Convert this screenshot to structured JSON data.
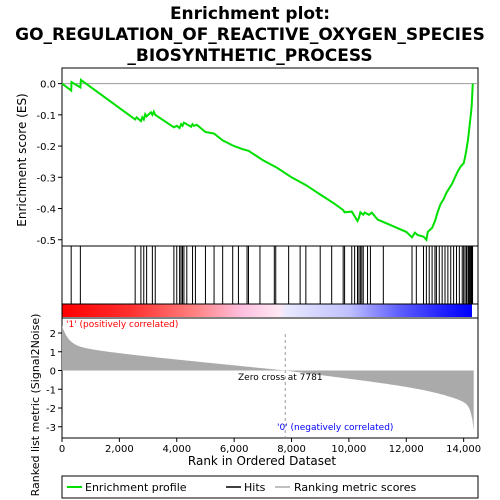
{
  "chart_data": {
    "type": "line",
    "title_line1": "Enrichment plot:",
    "title_line2": "GO_REGULATION_OF_REACTIVE_OXYGEN_SPECIES",
    "title_line3": "_BIOSYNTHETIC_PROCESS",
    "es_ylabel": "Enrichment score (ES)",
    "metric_ylabel": "Ranked list metric (Signal2Noise)",
    "xlabel": "Rank in Ordered Dataset",
    "x_ticks": [
      0,
      2000,
      4000,
      6000,
      8000,
      10000,
      12000,
      14000
    ],
    "x_tick_labels": [
      "0",
      "2,000",
      "4,000",
      "6,000",
      "8,000",
      "10,000",
      "12,000",
      "14,000"
    ],
    "xlim": [
      0,
      14500
    ],
    "es_ylim": [
      -0.52,
      0.05
    ],
    "es_yticks": [
      0.0,
      -0.1,
      -0.2,
      -0.3,
      -0.4,
      -0.5
    ],
    "es_ytick_labels": [
      "0.0",
      "-0.1",
      "-0.2",
      "-0.3",
      "-0.4",
      "-0.5"
    ],
    "metric_ylim": [
      -3.6,
      2.8
    ],
    "metric_yticks": [
      2,
      1,
      0,
      -1,
      -2,
      -3
    ],
    "metric_ytick_labels": [
      "2",
      "1",
      "0",
      "-1",
      "-2",
      "-3"
    ],
    "n_genes": 14350,
    "zero_cross_rank": 7781,
    "zero_cross_label": "Zero cross at 7781",
    "pos_label": "'1' (positively correlated)",
    "neg_label": "'0' (negatively correlated)",
    "enrichment_profile": {
      "x": [
        0,
        320,
        330,
        640,
        660,
        2550,
        2600,
        2750,
        2800,
        2850,
        2900,
        2950,
        3100,
        3150,
        3200,
        3250,
        3900,
        4000,
        4100,
        4150,
        4200,
        4250,
        4350,
        4500,
        4550,
        4600,
        4700,
        5000,
        5300,
        5600,
        6000,
        6300,
        6500,
        7000,
        7500,
        8000,
        8500,
        9000,
        9500,
        9800,
        9850,
        10100,
        10200,
        10300,
        10350,
        10400,
        10500,
        10550,
        10700,
        10800,
        11000,
        11500,
        12000,
        12200,
        12300,
        12400,
        12600,
        12700,
        12750,
        12900,
        13000,
        13100,
        13200,
        13300,
        13400,
        13500,
        13600,
        13700,
        13800,
        13900,
        14000,
        14050,
        14100,
        14150,
        14200,
        14250,
        14280,
        14300,
        14320
      ],
      "y": [
        0.0,
        -0.022,
        0.005,
        -0.012,
        0.012,
        -0.115,
        -0.108,
        -0.12,
        -0.108,
        -0.115,
        -0.098,
        -0.105,
        -0.092,
        -0.1,
        -0.09,
        -0.1,
        -0.14,
        -0.135,
        -0.142,
        -0.13,
        -0.135,
        -0.125,
        -0.13,
        -0.138,
        -0.13,
        -0.135,
        -0.132,
        -0.155,
        -0.16,
        -0.182,
        -0.2,
        -0.21,
        -0.215,
        -0.245,
        -0.27,
        -0.3,
        -0.325,
        -0.355,
        -0.385,
        -0.405,
        -0.412,
        -0.41,
        -0.425,
        -0.44,
        -0.43,
        -0.412,
        -0.42,
        -0.413,
        -0.42,
        -0.413,
        -0.435,
        -0.455,
        -0.475,
        -0.492,
        -0.477,
        -0.485,
        -0.49,
        -0.5,
        -0.475,
        -0.462,
        -0.44,
        -0.41,
        -0.385,
        -0.37,
        -0.35,
        -0.335,
        -0.32,
        -0.3,
        -0.28,
        -0.265,
        -0.255,
        -0.235,
        -0.21,
        -0.18,
        -0.14,
        -0.1,
        -0.07,
        -0.03,
        0.0
      ]
    },
    "hits": [
      320,
      640,
      2550,
      2750,
      2850,
      2950,
      3150,
      3250,
      3900,
      4000,
      4100,
      4150,
      4200,
      4250,
      4350,
      4550,
      4650,
      5000,
      5300,
      5600,
      5950,
      6150,
      6450,
      6500,
      6900,
      7400,
      7450,
      7900,
      8300,
      8500,
      9000,
      9400,
      9800,
      9850,
      10100,
      10200,
      10300,
      10350,
      10400,
      10450,
      10500,
      10650,
      10750,
      11200,
      12200,
      12350,
      12600,
      12700,
      12800,
      12900,
      13000,
      13050,
      13150,
      13250,
      13350,
      13450,
      13550,
      13650,
      13750,
      13850,
      13950,
      14000,
      14050,
      14100,
      14150,
      14180,
      14200,
      14230,
      14260,
      14290,
      14310
    ],
    "colors": {
      "profile": "#00e000",
      "hits": "#000000",
      "metric_fill": "#aaaaaa",
      "pos_text": "#ff0000",
      "neg_text": "#0000ff",
      "zero_line": "#999999"
    },
    "legend": {
      "profile": "Enrichment profile",
      "hits": "Hits",
      "metric": "Ranking metric scores"
    }
  }
}
